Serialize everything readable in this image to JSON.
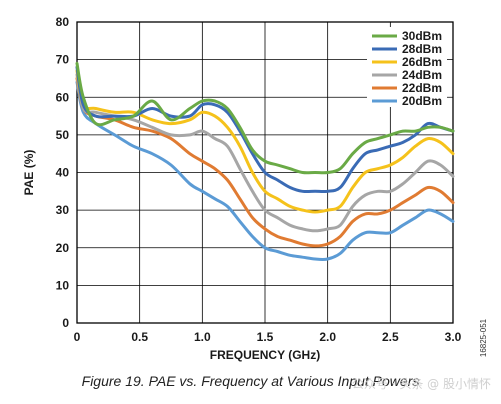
{
  "chart_data": {
    "type": "line",
    "xlabel": "FREQUENCY (GHz)",
    "ylabel": "PAE (%)",
    "xlim": [
      0,
      3.0
    ],
    "ylim": [
      0,
      80
    ],
    "xticks": [
      "0",
      "0.5",
      "1.0",
      "1.5",
      "2.0",
      "2.5",
      "3.0"
    ],
    "yticks": [
      "0",
      "10",
      "20",
      "30",
      "40",
      "50",
      "60",
      "70",
      "80"
    ],
    "grid": true,
    "legend_position": "top-right",
    "series": [
      {
        "name": "30dBm",
        "color": "#6aaa46",
        "x": [
          0,
          0.05,
          0.15,
          0.3,
          0.45,
          0.6,
          0.75,
          0.9,
          1.0,
          1.1,
          1.2,
          1.3,
          1.4,
          1.5,
          1.6,
          1.7,
          1.8,
          1.9,
          2.0,
          2.1,
          2.2,
          2.3,
          2.4,
          2.5,
          2.6,
          2.7,
          2.8,
          2.9,
          3.0
        ],
        "y": [
          69,
          60,
          53,
          54,
          55,
          59,
          54,
          57,
          59,
          59,
          57,
          52,
          46,
          43,
          42,
          41,
          40,
          40,
          40,
          41,
          45,
          48,
          49,
          50,
          51,
          51,
          52,
          52,
          51
        ]
      },
      {
        "name": "28dBm",
        "color": "#3a6bb5",
        "x": [
          0,
          0.05,
          0.15,
          0.3,
          0.45,
          0.6,
          0.75,
          0.9,
          1.0,
          1.1,
          1.2,
          1.3,
          1.4,
          1.5,
          1.6,
          1.7,
          1.8,
          1.9,
          2.0,
          2.1,
          2.2,
          2.3,
          2.4,
          2.5,
          2.6,
          2.7,
          2.8,
          2.9,
          3.0
        ],
        "y": [
          68,
          58,
          55,
          55,
          55,
          57,
          55,
          55,
          58,
          58,
          56,
          51,
          45,
          40,
          38,
          36,
          35,
          35,
          35,
          36,
          41,
          45,
          46,
          47,
          48,
          50,
          53,
          52,
          51
        ]
      },
      {
        "name": "26dBm",
        "color": "#f5c21b",
        "x": [
          0,
          0.05,
          0.15,
          0.3,
          0.45,
          0.6,
          0.75,
          0.9,
          1.0,
          1.1,
          1.2,
          1.3,
          1.4,
          1.5,
          1.6,
          1.7,
          1.8,
          1.9,
          2.0,
          2.1,
          2.2,
          2.3,
          2.4,
          2.5,
          2.6,
          2.7,
          2.8,
          2.9,
          3.0
        ],
        "y": [
          67,
          58,
          57,
          56,
          56,
          54,
          53,
          54,
          56,
          55,
          52,
          47,
          40,
          35,
          33,
          31,
          30,
          29.5,
          30,
          31,
          36,
          40,
          41,
          42,
          44,
          47,
          49,
          48,
          45
        ]
      },
      {
        "name": "24dBm",
        "color": "#a6a6a6",
        "x": [
          0,
          0.05,
          0.15,
          0.3,
          0.45,
          0.6,
          0.75,
          0.9,
          1.0,
          1.1,
          1.2,
          1.3,
          1.4,
          1.5,
          1.6,
          1.7,
          1.8,
          1.9,
          2.0,
          2.1,
          2.2,
          2.3,
          2.4,
          2.5,
          2.6,
          2.7,
          2.8,
          2.9,
          3.0
        ],
        "y": [
          66,
          57,
          56,
          55,
          54,
          52,
          50,
          50,
          51,
          49,
          47,
          41,
          35,
          30,
          28,
          26,
          25,
          24.5,
          25,
          26,
          31,
          34,
          35,
          35,
          37,
          40,
          43,
          42,
          39
        ]
      },
      {
        "name": "22dBm",
        "color": "#e07b32",
        "x": [
          0,
          0.05,
          0.15,
          0.3,
          0.45,
          0.6,
          0.75,
          0.9,
          1.0,
          1.1,
          1.2,
          1.3,
          1.4,
          1.5,
          1.6,
          1.7,
          1.8,
          1.9,
          2.0,
          2.1,
          2.2,
          2.3,
          2.4,
          2.5,
          2.6,
          2.7,
          2.8,
          2.9,
          3.0
        ],
        "y": [
          65,
          57,
          55,
          54,
          52,
          51,
          49,
          45,
          43,
          41,
          38,
          33,
          28,
          25,
          23,
          22,
          21,
          20.5,
          21,
          23,
          27,
          29,
          29,
          30,
          32,
          34,
          36,
          35,
          32
        ]
      },
      {
        "name": "20dBm",
        "color": "#5b9bd5",
        "x": [
          0,
          0.05,
          0.15,
          0.3,
          0.45,
          0.6,
          0.75,
          0.9,
          1.0,
          1.1,
          1.2,
          1.3,
          1.4,
          1.5,
          1.6,
          1.7,
          1.8,
          1.9,
          2.0,
          2.1,
          2.2,
          2.3,
          2.4,
          2.5,
          2.6,
          2.7,
          2.8,
          2.9,
          3.0
        ],
        "y": [
          64,
          56,
          53,
          50,
          47,
          45,
          42,
          37,
          35,
          33,
          31,
          27,
          23,
          20,
          19,
          18,
          17.5,
          17,
          17,
          18.5,
          22,
          24,
          24,
          24,
          26,
          28,
          30,
          29,
          27
        ]
      }
    ]
  },
  "side_label": "16825-051",
  "caption": "Figure 19. PAE vs. Frequency at Various Input Powers",
  "watermark": "公众号 · 头条 @ 股小情怀"
}
